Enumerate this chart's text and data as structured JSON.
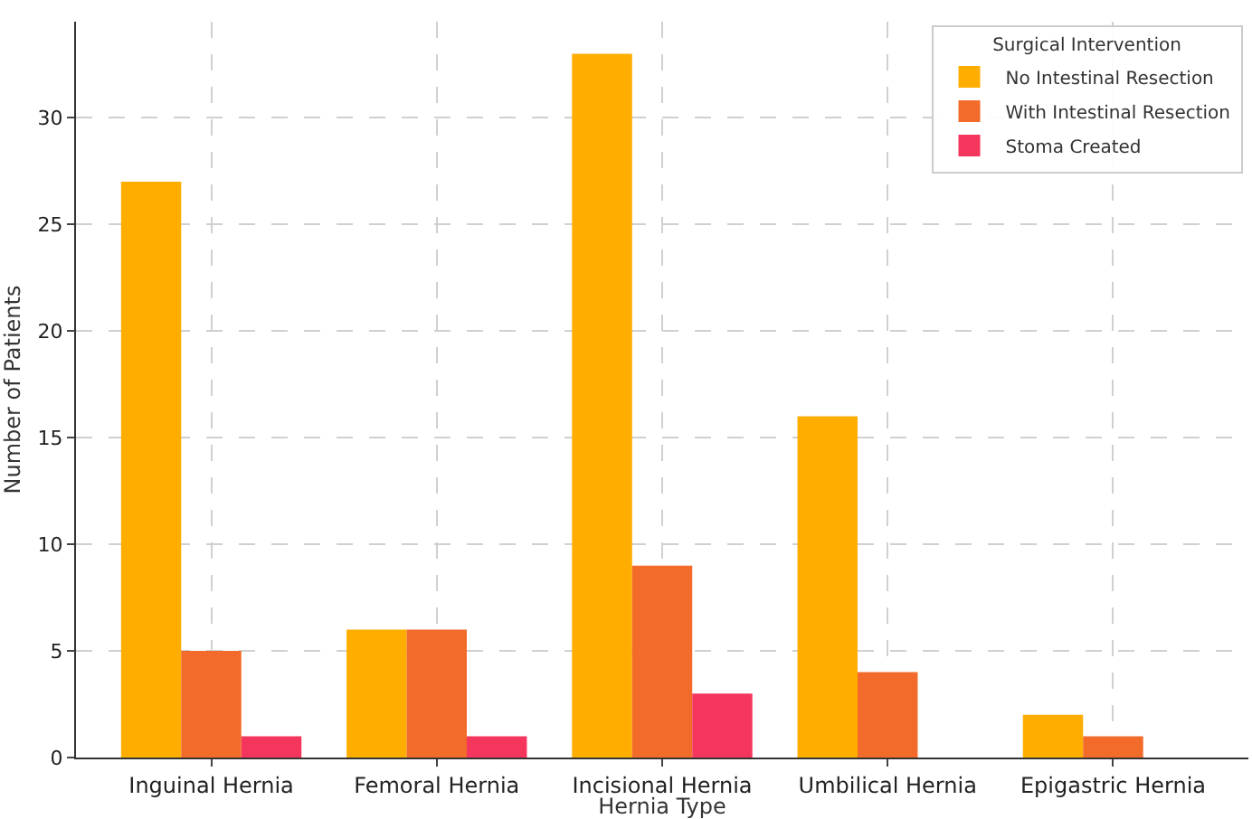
{
  "chart_data": {
    "type": "bar",
    "xlabel": "Hernia Type",
    "ylabel": "Number of Patients",
    "legend_title": "Surgical Intervention",
    "categories": [
      "Inguinal Hernia",
      "Femoral Hernia",
      "Incisional Hernia",
      "Umbilical Hernia",
      "Epigastric Hernia"
    ],
    "series": [
      {
        "name": "No Intestinal Resection",
        "color": "#ffae00",
        "values": [
          27,
          6,
          33,
          16,
          2
        ]
      },
      {
        "name": "With Intestinal Resection",
        "color": "#f26b2a",
        "values": [
          5,
          6,
          9,
          4,
          1
        ]
      },
      {
        "name": "Stoma Created",
        "color": "#f5365c",
        "values": [
          1,
          1,
          3,
          0,
          0
        ]
      }
    ],
    "ylim": [
      0,
      34.5
    ],
    "yticks": [
      0,
      5,
      10,
      15,
      20,
      25,
      30
    ],
    "grid": true,
    "legend": "top right"
  }
}
